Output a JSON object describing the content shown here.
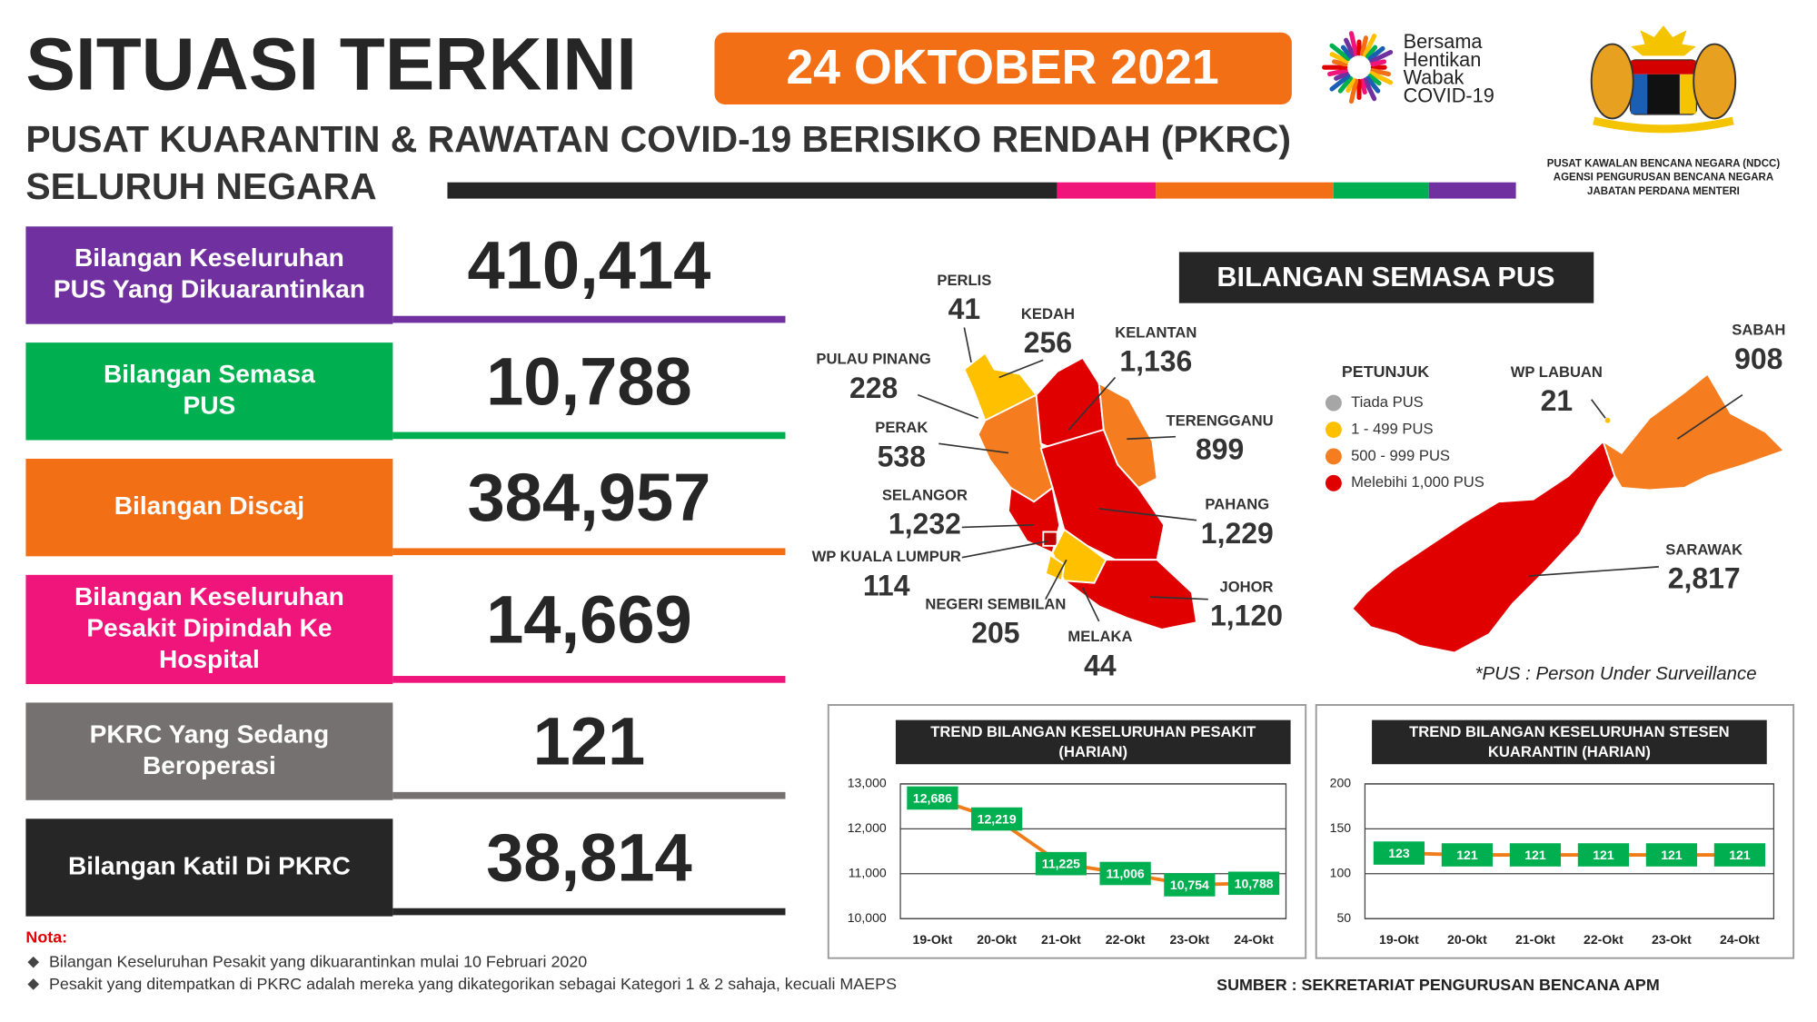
{
  "header": {
    "title": "SITUASI TERKINI",
    "date": "24 OKTOBER 2021",
    "subtitle": "PUSAT KUARANTIN & RAWATAN COVID-19 BERISIKO RENDAH (PKRC)",
    "scope": "SELURUH NEGARA",
    "campaign": [
      "Bersama",
      "Hentikan",
      "Wabak",
      "COVID-19"
    ],
    "agency": [
      "PUSAT KAWALAN BENCANA NEGARA (NDCC)",
      "AGENSI PENGURUSAN BENCANA NEGARA",
      "JABATAN PERDANA MENTERI"
    ]
  },
  "stats": [
    {
      "label": [
        "Bilangan Keseluruhan",
        "PUS Yang Dikuarantinkan"
      ],
      "value": "410,414",
      "color": "#7030a0"
    },
    {
      "label": [
        "Bilangan Semasa",
        "PUS"
      ],
      "value": "10,788",
      "color": "#00b050"
    },
    {
      "label": [
        "Bilangan Discaj"
      ],
      "value": "384,957",
      "color": "#f36f16"
    },
    {
      "label": [
        "Bilangan Keseluruhan",
        "Pesakit Dipindah Ke",
        "Hospital"
      ],
      "value": "14,669",
      "color": "#f0157a"
    },
    {
      "label": [
        "PKRC Yang Sedang",
        "Beroperasi"
      ],
      "value": "121",
      "color": "#767171"
    },
    {
      "label": [
        "Bilangan Katil Di PKRC"
      ],
      "value": "38,814",
      "color": "#262626"
    }
  ],
  "map": {
    "title": "BILANGAN SEMASA PUS",
    "states": [
      {
        "name": "PERLIS",
        "value": "41"
      },
      {
        "name": "KEDAH",
        "value": "256"
      },
      {
        "name": "KELANTAN",
        "value": "1,136"
      },
      {
        "name": "PULAU PINANG",
        "value": "228"
      },
      {
        "name": "PERAK",
        "value": "538"
      },
      {
        "name": "TERENGGANU",
        "value": "899"
      },
      {
        "name": "SELANGOR",
        "value": "1,232"
      },
      {
        "name": "PAHANG",
        "value": "1,229"
      },
      {
        "name": "WP KUALA LUMPUR",
        "value": "114"
      },
      {
        "name": "JOHOR",
        "value": "1,120"
      },
      {
        "name": "NEGERI SEMBILAN",
        "value": "205"
      },
      {
        "name": "MELAKA",
        "value": "44"
      },
      {
        "name": "WP LABUAN",
        "value": "21"
      },
      {
        "name": "SABAH",
        "value": "908"
      },
      {
        "name": "SARAWAK",
        "value": "2,817"
      }
    ],
    "legend": {
      "title": "PETUNJUK",
      "items": [
        {
          "label": "Tiada PUS",
          "color": "#a6a6a6"
        },
        {
          "label": "1 - 499 PUS",
          "color": "#ffc000"
        },
        {
          "label": "500 - 999 PUS",
          "color": "#f57c1f"
        },
        {
          "label": "Melebihi 1,000 PUS",
          "color": "#e00000"
        }
      ]
    },
    "footnote": "*PUS : Person Under Surveillance"
  },
  "chart_data": [
    {
      "type": "line",
      "title": [
        "TREND BILANGAN KESELURUHAN PESAKIT",
        "(HARIAN)"
      ],
      "categories": [
        "19-Okt",
        "20-Okt",
        "21-Okt",
        "22-Okt",
        "23-Okt",
        "24-Okt"
      ],
      "values": [
        12686,
        12219,
        11225,
        11006,
        10754,
        10788
      ],
      "value_labels": [
        "12,686",
        "12,219",
        "11,225",
        "11,006",
        "10,754",
        "10,788"
      ],
      "color": "#f07d1a",
      "label_color": "#00b050",
      "ylim": [
        10000,
        13000
      ],
      "yticks": [
        {
          "value": 10000,
          "label": "10,000"
        },
        {
          "value": 11000,
          "label": "11,000"
        },
        {
          "value": 12000,
          "label": "12,000"
        },
        {
          "value": 13000,
          "label": "13,000"
        }
      ],
      "grid": true
    },
    {
      "type": "line",
      "title": [
        "TREND BILANGAN KESELURUHAN STESEN",
        "KUARANTIN (HARIAN)"
      ],
      "categories": [
        "19-Okt",
        "20-Okt",
        "21-Okt",
        "22-Okt",
        "23-Okt",
        "24-Okt"
      ],
      "values": [
        123,
        121,
        121,
        121,
        121,
        121
      ],
      "color": "#f07d1a",
      "label_color": "#00b050",
      "ylim": [
        50,
        200
      ],
      "yticks": [
        50,
        100,
        150,
        200
      ],
      "grid": true
    }
  ],
  "notes": {
    "heading": "Nota:",
    "items": [
      "Bilangan Keseluruhan Pesakit yang dikuarantinkan mulai 10 Februari 2020",
      "Pesakit yang ditempatkan di PKRC adalah mereka yang dikategorikan sebagai Kategori 1 & 2 sahaja, kecuali MAEPS"
    ]
  },
  "source": "SUMBER : SEKRETARIAT PENGURUSAN BENCANA APM"
}
